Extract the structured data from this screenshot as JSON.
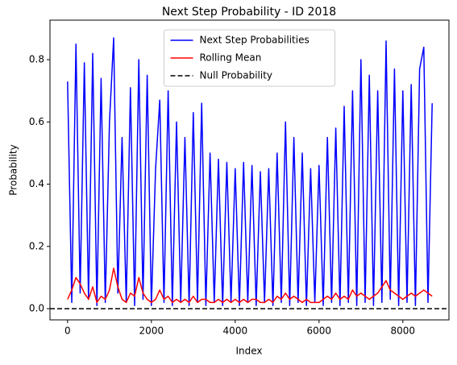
{
  "chart_data": {
    "type": "line",
    "title": "Next Step Probability - ID 2018",
    "x_label": "Index",
    "y_label": "Probability",
    "x": [
      0,
      100,
      200,
      300,
      400,
      500,
      600,
      700,
      800,
      900,
      1000,
      1100,
      1200,
      1300,
      1400,
      1500,
      1600,
      1700,
      1800,
      1900,
      2000,
      2100,
      2200,
      2300,
      2400,
      2500,
      2600,
      2700,
      2800,
      2900,
      3000,
      3100,
      3200,
      3300,
      3400,
      3500,
      3600,
      3700,
      3800,
      3900,
      4000,
      4100,
      4200,
      4300,
      4400,
      4500,
      4600,
      4700,
      4800,
      4900,
      5000,
      5100,
      5200,
      5300,
      5400,
      5500,
      5600,
      5700,
      5800,
      5900,
      6000,
      6100,
      6200,
      6300,
      6400,
      6500,
      6600,
      6700,
      6800,
      6900,
      7000,
      7100,
      7200,
      7300,
      7400,
      7500,
      7600,
      7700,
      7800,
      7900,
      8000,
      8100,
      8200,
      8300,
      8400,
      8500,
      8600,
      8700
    ],
    "series": [
      {
        "name": "Next Step Probabilities",
        "color": "#0000ff",
        "values": [
          0.73,
          0.02,
          0.85,
          0.05,
          0.79,
          0.03,
          0.82,
          0.01,
          0.74,
          0.02,
          0.6,
          0.87,
          0.05,
          0.55,
          0.02,
          0.71,
          0.01,
          0.8,
          0.03,
          0.75,
          0.01,
          0.45,
          0.67,
          0.02,
          0.7,
          0.01,
          0.6,
          0.02,
          0.55,
          0.01,
          0.63,
          0.02,
          0.66,
          0.01,
          0.5,
          0.02,
          0.48,
          0.01,
          0.47,
          0.02,
          0.45,
          0.01,
          0.47,
          0.02,
          0.46,
          0.01,
          0.44,
          0.02,
          0.45,
          0.01,
          0.5,
          0.02,
          0.6,
          0.01,
          0.55,
          0.02,
          0.5,
          0.01,
          0.45,
          0.02,
          0.46,
          0.01,
          0.55,
          0.02,
          0.58,
          0.01,
          0.65,
          0.02,
          0.7,
          0.01,
          0.8,
          0.02,
          0.75,
          0.01,
          0.7,
          0.02,
          0.86,
          0.03,
          0.77,
          0.01,
          0.7,
          0.02,
          0.72,
          0.01,
          0.77,
          0.84,
          0.02,
          0.66
        ]
      },
      {
        "name": "Rolling Mean",
        "color": "#ff0000",
        "values": [
          0.03,
          0.06,
          0.1,
          0.08,
          0.05,
          0.03,
          0.07,
          0.02,
          0.04,
          0.03,
          0.06,
          0.13,
          0.07,
          0.03,
          0.02,
          0.05,
          0.04,
          0.1,
          0.05,
          0.03,
          0.02,
          0.03,
          0.06,
          0.03,
          0.04,
          0.02,
          0.03,
          0.02,
          0.03,
          0.02,
          0.04,
          0.02,
          0.03,
          0.03,
          0.02,
          0.02,
          0.03,
          0.02,
          0.03,
          0.02,
          0.03,
          0.02,
          0.03,
          0.02,
          0.03,
          0.03,
          0.02,
          0.02,
          0.03,
          0.02,
          0.04,
          0.03,
          0.05,
          0.03,
          0.04,
          0.03,
          0.02,
          0.03,
          0.02,
          0.02,
          0.02,
          0.03,
          0.04,
          0.03,
          0.05,
          0.03,
          0.04,
          0.03,
          0.06,
          0.04,
          0.05,
          0.04,
          0.03,
          0.04,
          0.05,
          0.07,
          0.09,
          0.06,
          0.05,
          0.04,
          0.03,
          0.04,
          0.05,
          0.04,
          0.05,
          0.06,
          0.05,
          0.04
        ]
      }
    ],
    "hline": {
      "name": "Null Probability",
      "value": 0,
      "color": "#000000"
    },
    "xlim": [
      -420,
      9100
    ],
    "ylim": [
      -0.036,
      0.927
    ],
    "xticks": [
      0,
      2000,
      4000,
      6000,
      8000
    ],
    "yticks": [
      {
        "value": 0,
        "label": "0.0"
      },
      {
        "value": 0.2,
        "label": "0.2"
      },
      {
        "value": 0.4,
        "label": "0.4"
      },
      {
        "value": 0.6,
        "label": "0.6"
      },
      {
        "value": 0.8,
        "label": "0.8"
      }
    ],
    "legend": "upper center"
  }
}
